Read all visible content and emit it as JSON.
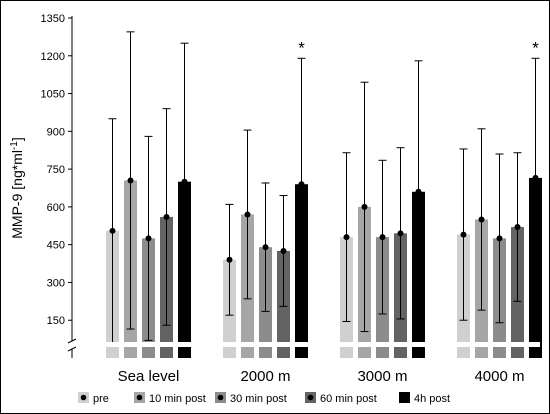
{
  "chart_data": {
    "type": "bar",
    "ylabel_main": "MMP-9 [ng*ml",
    "ylabel_sup": "-1",
    "ylabel_end": "]",
    "xlabel": "",
    "ylim": [
      0,
      1350
    ],
    "axis_break": true,
    "y_ticks": [
      150,
      300,
      450,
      600,
      750,
      900,
      1050,
      1200,
      1350
    ],
    "grid": false,
    "legend_position": "bottom",
    "categories": [
      "Sea level",
      "2000 m",
      "3000 m",
      "4000 m"
    ],
    "series": [
      {
        "name": "pre",
        "color": "#d0d0d0",
        "values": [
          505,
          390,
          480,
          490
        ],
        "errors": [
          445,
          220,
          335,
          340
        ]
      },
      {
        "name": "10 min post",
        "color": "#a6a6a6",
        "values": [
          705,
          570,
          600,
          550
        ],
        "errors": [
          590,
          335,
          495,
          360
        ]
      },
      {
        "name": "30 min post",
        "color": "#8c8c8c",
        "values": [
          475,
          440,
          480,
          475
        ],
        "errors": [
          405,
          255,
          305,
          335
        ]
      },
      {
        "name": "60 min post",
        "color": "#636363",
        "values": [
          560,
          425,
          495,
          520
        ],
        "errors": [
          430,
          220,
          340,
          295
        ]
      },
      {
        "name": "4h post",
        "color": "#000000",
        "values": [
          700,
          690,
          660,
          715
        ],
        "errors": [
          550,
          500,
          520,
          475
        ]
      }
    ],
    "annotations": [
      {
        "category": "2000 m",
        "series": "4h post",
        "text": "*"
      },
      {
        "category": "4000 m",
        "series": "4h post",
        "text": "*"
      }
    ]
  }
}
